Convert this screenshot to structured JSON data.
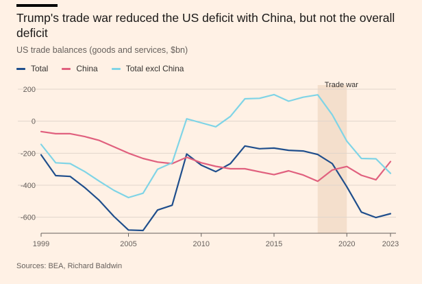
{
  "title": "Trump's trade war reduced the US deficit with China, but not the overall deficit",
  "subtitle": "US trade balances (goods and services, $bn)",
  "source": "Sources: BEA, Richard Baldwin",
  "legend": [
    {
      "label": "Total",
      "color": "#1f4e8c"
    },
    {
      "label": "China",
      "color": "#e0607e"
    },
    {
      "label": "Total excl China",
      "color": "#7fd4e6"
    }
  ],
  "chart_data": {
    "type": "line",
    "title": "Trump's trade war reduced the US deficit with China, but not the overall deficit",
    "subtitle": "US trade balances (goods and services, $bn)",
    "x": [
      1999,
      2000,
      2001,
      2002,
      2003,
      2004,
      2005,
      2006,
      2007,
      2008,
      2009,
      2010,
      2011,
      2012,
      2013,
      2014,
      2015,
      2016,
      2017,
      2018,
      2019,
      2020,
      2021,
      2022,
      2023
    ],
    "series": [
      {
        "name": "Total",
        "color": "#1f4e8c",
        "values": [
          -210,
          -340,
          -345,
          -415,
          -495,
          -595,
          -680,
          -683,
          -555,
          -525,
          -205,
          -275,
          -315,
          -265,
          -155,
          -172,
          -168,
          -182,
          -186,
          -208,
          -265,
          -410,
          -568,
          -602,
          -578
        ]
      },
      {
        "name": "China",
        "color": "#e0607e",
        "values": [
          -65,
          -78,
          -78,
          -96,
          -120,
          -160,
          -200,
          -233,
          -255,
          -265,
          -225,
          -260,
          -282,
          -297,
          -297,
          -316,
          -334,
          -310,
          -336,
          -375,
          -305,
          -283,
          -338,
          -366,
          -252
        ]
      },
      {
        "name": "Total excl China",
        "color": "#7fd4e6",
        "values": [
          -145,
          -260,
          -265,
          -315,
          -375,
          -432,
          -477,
          -450,
          -300,
          -260,
          15,
          -10,
          -35,
          30,
          140,
          143,
          166,
          125,
          150,
          165,
          40,
          -125,
          -233,
          -235,
          -326
        ]
      }
    ],
    "xlim": [
      1999,
      2023
    ],
    "ylim": [
      -700,
      200
    ],
    "yticks": [
      200,
      0,
      -200,
      -400,
      -600
    ],
    "xticks": [
      1999,
      2005,
      2010,
      2015,
      2020,
      2023
    ],
    "grid": true,
    "legend_position": "top-left",
    "annotations": [
      {
        "text": "Trade war",
        "x_start": 2018,
        "x_end": 2020
      }
    ]
  }
}
